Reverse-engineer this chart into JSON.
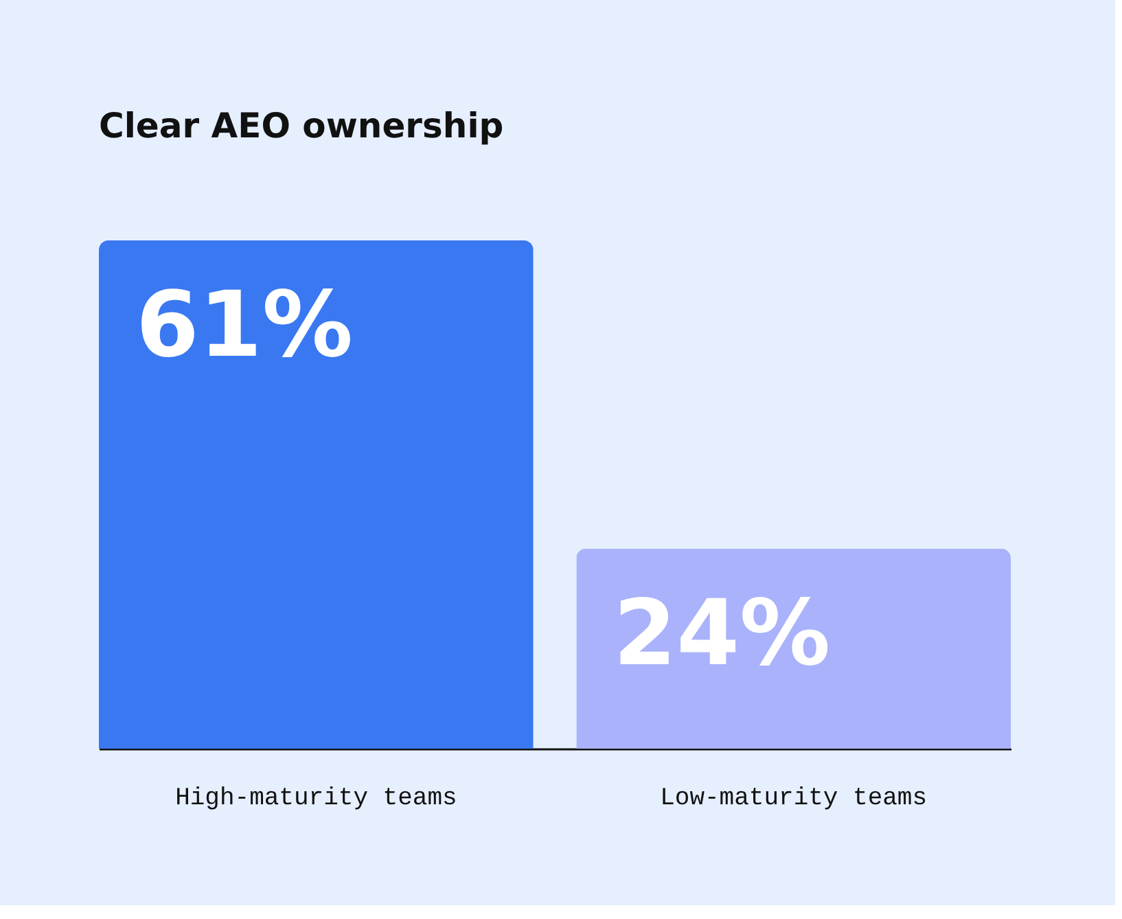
{
  "chart_data": {
    "type": "bar",
    "title": "Clear AEO ownership",
    "categories": [
      "High-maturity teams",
      "Low-maturity teams"
    ],
    "values": [
      61,
      24
    ],
    "colors": [
      "#3a78f2",
      "#a9b2fb"
    ],
    "data_labels": true,
    "value_labels": [
      "61%",
      "24%"
    ]
  }
}
